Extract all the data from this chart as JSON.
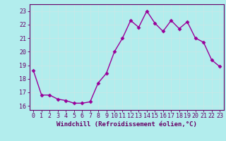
{
  "x": [
    0,
    1,
    2,
    3,
    4,
    5,
    6,
    7,
    8,
    9,
    10,
    11,
    12,
    13,
    14,
    15,
    16,
    17,
    18,
    19,
    20,
    21,
    22,
    23
  ],
  "y": [
    18.6,
    16.8,
    16.8,
    16.5,
    16.4,
    16.2,
    16.2,
    16.3,
    17.7,
    18.4,
    20.0,
    21.0,
    22.3,
    21.8,
    23.0,
    22.1,
    21.5,
    22.3,
    21.7,
    22.2,
    21.0,
    20.7,
    19.4,
    18.9
  ],
  "line_color": "#990099",
  "marker": "D",
  "markersize": 2.5,
  "linewidth": 1.0,
  "bg_color": "#b2eded",
  "grid_color": "#aadddd",
  "axis_color": "#660066",
  "tick_color": "#660066",
  "xlabel": "Windchill (Refroidissement éolien,°C)",
  "xlabel_fontsize": 6.5,
  "tick_fontsize": 6,
  "ylim": [
    15.7,
    23.5
  ],
  "yticks": [
    16,
    17,
    18,
    19,
    20,
    21,
    22,
    23
  ],
  "xticks": [
    0,
    1,
    2,
    3,
    4,
    5,
    6,
    7,
    8,
    9,
    10,
    11,
    12,
    13,
    14,
    15,
    16,
    17,
    18,
    19,
    20,
    21,
    22,
    23
  ]
}
